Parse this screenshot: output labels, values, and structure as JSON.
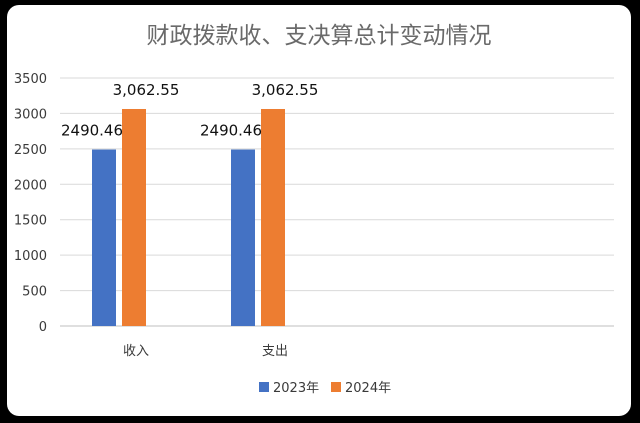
{
  "chart_data": {
    "type": "bar",
    "title": "财政拨款收、支决算总计变动情况",
    "categories": [
      "收入",
      "支出"
    ],
    "series": [
      {
        "name": "2023年",
        "values": [
          2490.46,
          2490.46
        ],
        "labels": [
          "2490.46",
          "2490.46"
        ],
        "color": "#4472c4"
      },
      {
        "name": "2024年",
        "values": [
          3062.55,
          3062.55
        ],
        "labels": [
          "3,062.55",
          "3,062.55"
        ],
        "color": "#ed7d31"
      }
    ],
    "ylim": [
      0,
      3500
    ],
    "yticks": [
      "0",
      "500",
      "1000",
      "1500",
      "2000",
      "2500",
      "3000",
      "3500"
    ],
    "grid": true,
    "legend_position": "bottom"
  }
}
